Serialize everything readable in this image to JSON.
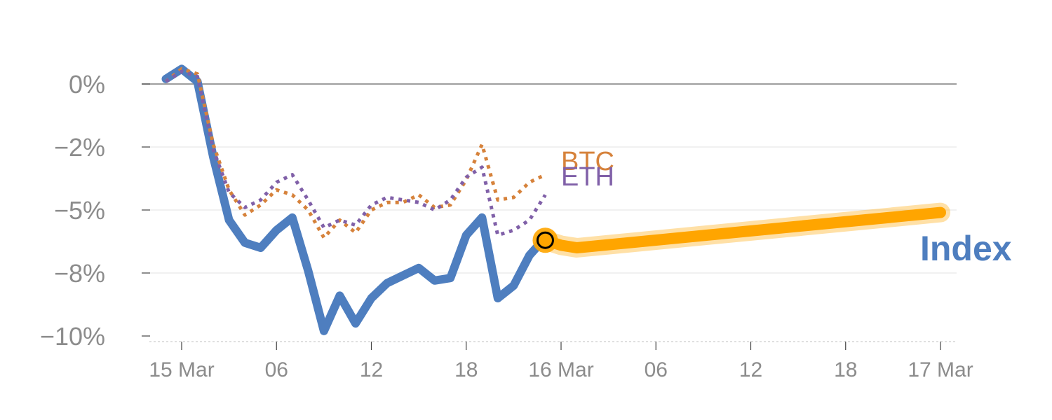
{
  "chart_data": {
    "type": "line",
    "title": "",
    "xlabel": "",
    "ylabel": "",
    "ylim": [
      -10,
      0
    ],
    "y_ticks": [
      {
        "value": 0,
        "label": "0%"
      },
      {
        "value": -2.5,
        "label": "−2%"
      },
      {
        "value": -5,
        "label": "−5%"
      },
      {
        "value": -7.5,
        "label": "−8%"
      },
      {
        "value": -10,
        "label": "−10%"
      }
    ],
    "x_range_hours": [
      -1,
      49.5
    ],
    "x_ticks": [
      {
        "hour": 0,
        "label": "15 Mar"
      },
      {
        "hour": 6,
        "label": "06"
      },
      {
        "hour": 12,
        "label": "12"
      },
      {
        "hour": 18,
        "label": "18"
      },
      {
        "hour": 24,
        "label": "16 Mar"
      },
      {
        "hour": 30,
        "label": "06"
      },
      {
        "hour": 36,
        "label": "12"
      },
      {
        "hour": 42,
        "label": "18"
      },
      {
        "hour": 48,
        "label": "17 Mar"
      }
    ],
    "grid": true,
    "series": [
      {
        "name": "Index",
        "color": "#4e7ebf",
        "style": "solid",
        "x": [
          -1,
          0,
          1,
          2,
          3,
          4,
          5,
          6,
          7,
          8,
          9,
          10,
          11,
          12,
          13,
          14,
          15,
          16,
          17,
          18,
          19,
          20,
          21,
          22,
          23
        ],
        "y": [
          0.2,
          0.6,
          0.1,
          -2.9,
          -5.4,
          -6.3,
          -6.5,
          -5.8,
          -5.3,
          -7.4,
          -9.8,
          -8.4,
          -9.5,
          -8.5,
          -7.9,
          -7.6,
          -7.3,
          -7.8,
          -7.7,
          -6.0,
          -5.3,
          -8.5,
          -8.0,
          -6.8,
          -6.1
        ]
      },
      {
        "name": "BTC",
        "color": "#d6823b",
        "style": "dotted",
        "x": [
          -1,
          0,
          1,
          2,
          3,
          4,
          5,
          6,
          7,
          8,
          9,
          10,
          11,
          12,
          13,
          14,
          15,
          16,
          17,
          18,
          19,
          20,
          21,
          22,
          23
        ],
        "y": [
          0.1,
          0.6,
          0.4,
          -2.4,
          -4.2,
          -5.2,
          -4.8,
          -4.2,
          -4.4,
          -5.0,
          -6.1,
          -5.4,
          -5.9,
          -5.0,
          -4.7,
          -4.7,
          -4.4,
          -4.9,
          -4.8,
          -3.8,
          -2.4,
          -4.6,
          -4.5,
          -3.9,
          -3.6
        ]
      },
      {
        "name": "ETH",
        "color": "#8060a8",
        "style": "dotted",
        "x": [
          -1,
          0,
          1,
          2,
          3,
          4,
          5,
          6,
          7,
          8,
          9,
          10,
          11,
          12,
          13,
          14,
          15,
          16,
          17,
          18,
          19,
          20,
          21,
          22,
          23
        ],
        "y": [
          0.1,
          0.5,
          0.3,
          -2.6,
          -4.3,
          -4.9,
          -4.6,
          -3.9,
          -3.6,
          -4.6,
          -5.7,
          -5.4,
          -5.6,
          -4.8,
          -4.5,
          -4.6,
          -4.7,
          -5.0,
          -4.6,
          -3.7,
          -3.3,
          -6.0,
          -5.8,
          -5.4,
          -4.4
        ]
      },
      {
        "name": "Index projection",
        "color": "#ffa500",
        "style": "thick",
        "x": [
          23,
          24,
          25,
          48
        ],
        "y": [
          -6.2,
          -6.4,
          -6.5,
          -5.1
        ]
      }
    ],
    "marker": {
      "x": 23,
      "y": -6.2
    },
    "labels": {
      "btc": {
        "text": "BTC",
        "color": "#d6823b"
      },
      "eth": {
        "text": "ETH",
        "color": "#8060a8"
      },
      "index": {
        "text": "Index",
        "color": "#4e7ebf"
      }
    }
  }
}
